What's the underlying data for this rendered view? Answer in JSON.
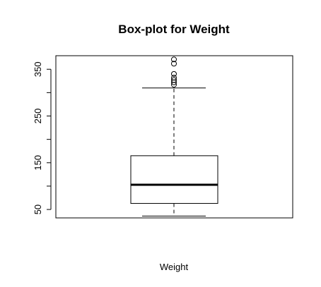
{
  "chart_data": {
    "type": "box",
    "title": "Box-plot for Weight",
    "xlabel": "Weight",
    "ylabel": "",
    "ylim": [
      32,
      379
    ],
    "yticks": [
      50,
      150,
      250,
      350
    ],
    "ytick_labels": [
      "50",
      "150",
      "250",
      "350"
    ],
    "grid": false,
    "box": {
      "whisker_low": 36,
      "q1": 63,
      "median": 103,
      "q3": 165,
      "whisker_high": 310,
      "outliers": [
        317,
        322,
        327,
        332,
        340,
        362,
        371
      ]
    }
  }
}
